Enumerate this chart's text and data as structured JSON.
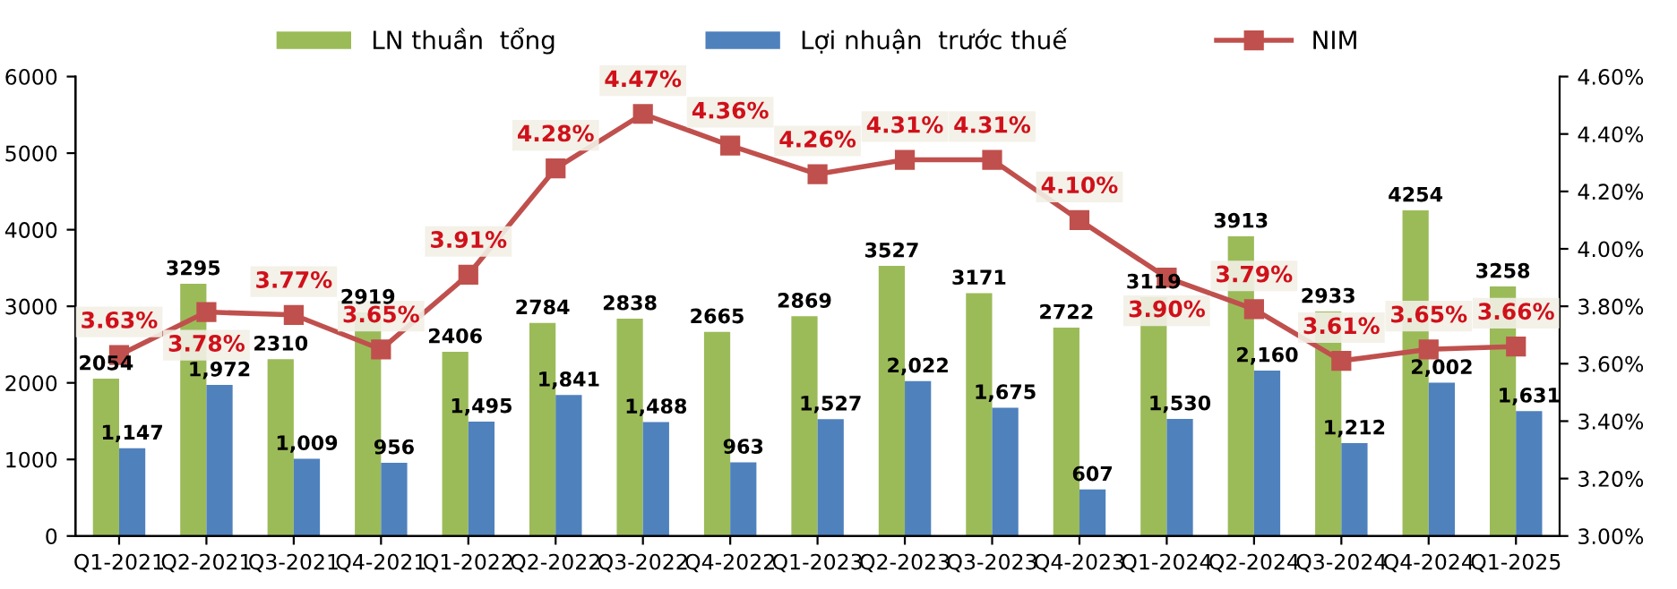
{
  "chart_data": {
    "type": "bar",
    "categories": [
      "Q1-2021",
      "Q2-2021",
      "Q3-2021",
      "Q4-2021",
      "Q1-2022",
      "Q2-2022",
      "Q3-2022",
      "Q4-2022",
      "Q1-2023",
      "Q2-2023",
      "Q3-2023",
      "Q4-2023",
      "Q1-2024",
      "Q2-2024",
      "Q3-2024",
      "Q4-2024",
      "Q1-2025"
    ],
    "series": [
      {
        "name": "LN thuần  tổng",
        "color": "#9bbb59",
        "values": [
          2054,
          3295,
          2310,
          2919,
          2406,
          2784,
          2838,
          2665,
          2869,
          3527,
          3171,
          2722,
          3119,
          3913,
          2933,
          4254,
          3258
        ],
        "value_labels": [
          "2054",
          "3295",
          "2310",
          "2919",
          "2406",
          "2784",
          "2838",
          "2665",
          "2869",
          "3527",
          "3171",
          "2722",
          "3119",
          "3913",
          "2933",
          "4254",
          "3258"
        ]
      },
      {
        "name": "Lợi nhuận  trước thuế",
        "color": "#4f81bd",
        "values": [
          1147,
          1972,
          1009,
          956,
          1495,
          1841,
          1488,
          963,
          1527,
          2022,
          1675,
          607,
          1530,
          2160,
          1212,
          2002,
          1631
        ],
        "value_labels": [
          "1,147",
          "1,972",
          "1,009",
          "956",
          "1,495",
          "1,841",
          "1,488",
          "963",
          "1,527",
          "2,022",
          "1,675",
          "607",
          "1,530",
          "2,160",
          "1,212",
          "2,002",
          "1,631"
        ]
      },
      {
        "name": "NIM",
        "type": "line",
        "axis": "y2",
        "color": "#c0504d",
        "marker": "square",
        "line_style": "solid",
        "values": [
          3.63,
          3.78,
          3.77,
          3.65,
          3.91,
          4.28,
          4.47,
          4.36,
          4.26,
          4.31,
          4.31,
          4.1,
          3.9,
          3.79,
          3.61,
          3.65,
          3.66
        ],
        "value_labels": [
          "3.63%",
          "3.78%",
          "3.77%",
          "3.65%",
          "3.91%",
          "4.28%",
          "4.47%",
          "4.36%",
          "4.26%",
          "4.31%",
          "4.31%",
          "4.10%",
          "3.90%",
          "3.79%",
          "3.61%",
          "3.65%",
          "3.66%"
        ]
      }
    ],
    "ylim": [
      0,
      6000
    ],
    "yticks": [
      0,
      1000,
      2000,
      3000,
      4000,
      5000,
      6000
    ],
    "y2lim": [
      3.0,
      4.6
    ],
    "y2ticks": [
      {
        "value": 3.0,
        "label": "3.00%"
      },
      {
        "value": 3.2,
        "label": "3.20%"
      },
      {
        "value": 3.4,
        "label": "3.40%"
      },
      {
        "value": 3.6,
        "label": "3.60%"
      },
      {
        "value": 3.8,
        "label": "3.80%"
      },
      {
        "value": 4.0,
        "label": "4.00%"
      },
      {
        "value": 4.2,
        "label": "4.20%"
      },
      {
        "value": 4.4,
        "label": "4.40%"
      },
      {
        "value": 4.6,
        "label": "4.60%"
      }
    ],
    "legend": "top",
    "grid": false
  }
}
